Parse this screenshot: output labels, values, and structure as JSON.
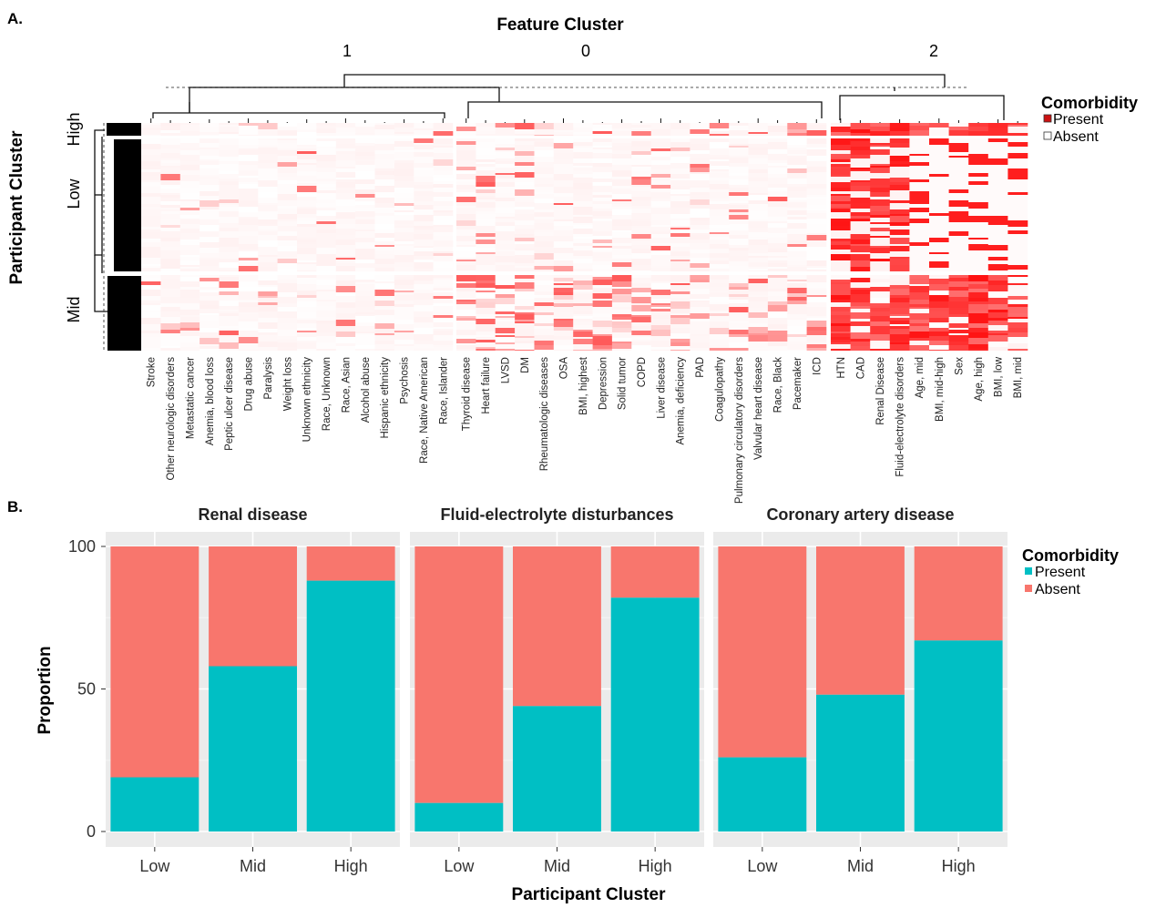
{
  "panel_a": {
    "label": "A.",
    "title_top": "Feature Cluster",
    "title_left": "Participant Cluster",
    "feature_cluster_ids": [
      "1",
      "0",
      "2"
    ],
    "participant_cluster_labels": [
      "High",
      "Low",
      "Mid"
    ],
    "legend": {
      "title": "Comorbidity",
      "present": "Present",
      "absent": "Absent",
      "present_color": "#e31a1c",
      "absent_color": "#ffffff"
    },
    "features": [
      "Stroke",
      "Other neurologic disorders",
      "Metastatic cancer",
      "Anemia, blood loss",
      "Peptic ulcer disease",
      "Drug abuse",
      "Paralysis",
      "Weight loss",
      "Unknown ethnicity",
      "Race, Unknown",
      "Race, Asian",
      "Alcohol abuse",
      "Hispanic ethnicity",
      "Psychosis",
      "Race, Native American",
      "Race, Islander",
      "Thyroid disease",
      "Heart failure",
      "LVSD",
      "DM",
      "Rheumatologic diseases",
      "OSA",
      "BMI, highest",
      "Depression",
      "Solid tumor",
      "COPD",
      "Liver disease",
      "Anemia, deficiency",
      "PAD",
      "Coagulopathy",
      "Pulmonary circulatory disorders",
      "Valvular heart disease",
      "Race, Black",
      "Pacemaker",
      "ICD",
      "HTN",
      "CAD",
      "Renal Disease",
      "Fluid-electrolyte disorders",
      "Age, mid",
      "BMI, mid-high",
      "Sex",
      "Age, high",
      "BMI, low",
      "BMI, mid"
    ]
  },
  "panel_b": {
    "label": "B.",
    "legend": {
      "title": "Comorbidity",
      "present": "Present",
      "absent": "Absent"
    },
    "xlabel": "Participant Cluster",
    "ylabel": "Proportion"
  },
  "chart_data": [
    {
      "type": "heatmap",
      "title": "Feature Cluster",
      "ylabel": "Participant Cluster",
      "row_groups": [
        "High",
        "Low",
        "Mid"
      ],
      "column_groups": [
        {
          "cluster": "1",
          "columns": [
            "Stroke",
            "Other neurologic disorders",
            "Metastatic cancer",
            "Anemia, blood loss",
            "Peptic ulcer disease",
            "Drug abuse",
            "Paralysis",
            "Weight loss",
            "Unknown ethnicity",
            "Race, Unknown",
            "Race, Asian",
            "Alcohol abuse",
            "Hispanic ethnicity",
            "Psychosis",
            "Race, Native American",
            "Race, Islander"
          ]
        },
        {
          "cluster": "0",
          "columns": [
            "Thyroid disease",
            "Heart failure",
            "LVSD",
            "DM",
            "Rheumatologic diseases",
            "OSA",
            "BMI, highest",
            "Depression",
            "Solid tumor",
            "COPD",
            "Liver disease",
            "Anemia, deficiency",
            "PAD",
            "Coagulopathy",
            "Pulmonary circulatory disorders",
            "Valvular heart disease",
            "Race, Black",
            "Pacemaker",
            "ICD"
          ]
        },
        {
          "cluster": "2",
          "columns": [
            "HTN",
            "CAD",
            "Renal Disease",
            "Fluid-electrolyte disorders",
            "Age, mid",
            "BMI, mid-high",
            "Sex",
            "Age, high",
            "BMI, low",
            "BMI, mid"
          ]
        }
      ],
      "legend": [
        "Present",
        "Absent"
      ]
    },
    {
      "type": "bar",
      "stacked": true,
      "facets": [
        {
          "title": "Renal disease",
          "categories": [
            "Low",
            "Mid",
            "High"
          ],
          "series": [
            {
              "name": "Present",
              "values": [
                19,
                58,
                88
              ]
            },
            {
              "name": "Absent",
              "values": [
                81,
                42,
                12
              ]
            }
          ]
        },
        {
          "title": "Fluid-electrolyte disturbances",
          "categories": [
            "Low",
            "Mid",
            "High"
          ],
          "series": [
            {
              "name": "Present",
              "values": [
                10,
                44,
                82
              ]
            },
            {
              "name": "Absent",
              "values": [
                90,
                56,
                18
              ]
            }
          ]
        },
        {
          "title": "Coronary artery disease",
          "categories": [
            "Low",
            "Mid",
            "High"
          ],
          "series": [
            {
              "name": "Present",
              "values": [
                26,
                48,
                67
              ]
            },
            {
              "name": "Absent",
              "values": [
                74,
                52,
                33
              ]
            }
          ]
        }
      ],
      "ylim": [
        0,
        100
      ],
      "yticks": [
        "0",
        "50",
        "100"
      ],
      "xlabel": "Participant Cluster",
      "ylabel": "Proportion",
      "legend": "right",
      "grid": true,
      "colors": {
        "Present": "#00bfc4",
        "Absent": "#f8766d"
      }
    }
  ]
}
